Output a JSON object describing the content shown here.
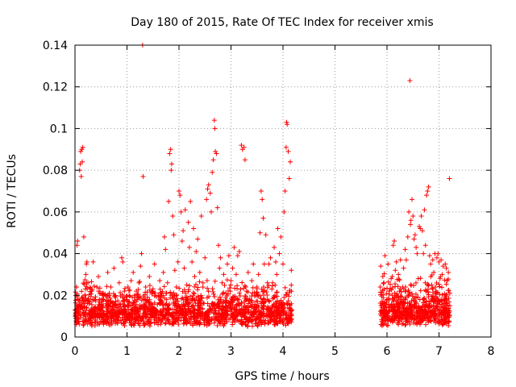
{
  "chart_data": {
    "type": "scatter",
    "title": "Day 180 of 2015, Rate Of TEC Index for receiver xmis",
    "xlabel": "GPS time / hours",
    "ylabel": "ROTI / TECUs",
    "xlim": [
      0,
      8
    ],
    "ylim": [
      0,
      0.14
    ],
    "grid": true,
    "x_ticks": [
      0,
      1,
      2,
      3,
      4,
      5,
      6,
      7,
      8
    ],
    "x_tick_labels": [
      "0",
      "1",
      "2",
      "3",
      "4",
      "5",
      "6",
      "7",
      "8"
    ],
    "y_ticks": [
      0,
      0.02,
      0.04,
      0.06,
      0.08,
      0.1,
      0.12,
      0.14
    ],
    "y_tick_labels": [
      "0",
      "0.02",
      "0.04",
      "0.06",
      "0.08",
      "0.1",
      "0.12",
      "0.14"
    ],
    "marker": "+",
    "marker_color": "#ff0000",
    "series": [
      {
        "name": "ROTI",
        "points": [
          [
            0.0,
            0.013
          ],
          [
            0.02,
            0.009
          ],
          [
            0.03,
            0.024
          ],
          [
            0.04,
            0.044
          ],
          [
            0.05,
            0.046
          ],
          [
            0.06,
            0.018
          ],
          [
            0.07,
            0.011
          ],
          [
            0.08,
            0.015
          ],
          [
            0.09,
            0.08
          ],
          [
            0.1,
            0.083
          ],
          [
            0.11,
            0.089
          ],
          [
            0.12,
            0.077
          ],
          [
            0.13,
            0.09
          ],
          [
            0.14,
            0.084
          ],
          [
            0.15,
            0.091
          ],
          [
            0.16,
            0.012
          ],
          [
            0.17,
            0.048
          ],
          [
            0.18,
            0.016
          ],
          [
            0.19,
            0.02
          ],
          [
            0.2,
            0.023
          ],
          [
            0.21,
            0.03
          ],
          [
            0.22,
            0.035
          ],
          [
            0.23,
            0.036
          ],
          [
            0.25,
            0.026
          ],
          [
            0.27,
            0.016
          ],
          [
            0.3,
            0.008
          ],
          [
            0.32,
            0.022
          ],
          [
            0.35,
            0.036
          ],
          [
            0.38,
            0.018
          ],
          [
            0.4,
            0.01
          ],
          [
            0.42,
            0.024
          ],
          [
            0.45,
            0.029
          ],
          [
            0.48,
            0.015
          ],
          [
            0.5,
            0.011
          ],
          [
            0.52,
            0.021
          ],
          [
            0.55,
            0.018
          ],
          [
            0.58,
            0.008
          ],
          [
            0.6,
            0.014
          ],
          [
            0.63,
            0.031
          ],
          [
            0.66,
            0.02
          ],
          [
            0.69,
            0.024
          ],
          [
            0.72,
            0.01
          ],
          [
            0.75,
            0.033
          ],
          [
            0.78,
            0.019
          ],
          [
            0.82,
            0.015
          ],
          [
            0.85,
            0.026
          ],
          [
            0.88,
            0.008
          ],
          [
            0.9,
            0.038
          ],
          [
            0.92,
            0.036
          ],
          [
            0.95,
            0.022
          ],
          [
            0.98,
            0.012
          ],
          [
            1.0,
            0.018
          ],
          [
            1.02,
            0.024
          ],
          [
            1.05,
            0.011
          ],
          [
            1.08,
            0.027
          ],
          [
            1.1,
            0.015
          ],
          [
            1.12,
            0.031
          ],
          [
            1.15,
            0.019
          ],
          [
            1.18,
            0.022
          ],
          [
            1.2,
            0.013
          ],
          [
            1.23,
            0.026
          ],
          [
            1.26,
            0.034
          ],
          [
            1.28,
            0.04
          ],
          [
            1.3,
            0.14
          ],
          [
            1.31,
            0.077
          ],
          [
            1.33,
            0.018
          ],
          [
            1.36,
            0.024
          ],
          [
            1.4,
            0.011
          ],
          [
            1.43,
            0.029
          ],
          [
            1.46,
            0.016
          ],
          [
            1.5,
            0.022
          ],
          [
            1.53,
            0.035
          ],
          [
            1.56,
            0.013
          ],
          [
            1.6,
            0.02
          ],
          [
            1.63,
            0.027
          ],
          [
            1.66,
            0.017
          ],
          [
            1.7,
            0.031
          ],
          [
            1.72,
            0.048
          ],
          [
            1.74,
            0.042
          ],
          [
            1.76,
            0.021
          ],
          [
            1.78,
            0.026
          ],
          [
            1.8,
            0.065
          ],
          [
            1.82,
            0.088
          ],
          [
            1.84,
            0.09
          ],
          [
            1.85,
            0.08
          ],
          [
            1.86,
            0.083
          ],
          [
            1.88,
            0.058
          ],
          [
            1.9,
            0.049
          ],
          [
            1.92,
            0.032
          ],
          [
            1.95,
            0.024
          ],
          [
            1.98,
            0.036
          ],
          [
            2.0,
            0.07
          ],
          [
            2.02,
            0.068
          ],
          [
            2.04,
            0.06
          ],
          [
            2.06,
            0.046
          ],
          [
            2.08,
            0.051
          ],
          [
            2.1,
            0.033
          ],
          [
            2.12,
            0.061
          ],
          [
            2.15,
            0.025
          ],
          [
            2.18,
            0.055
          ],
          [
            2.2,
            0.043
          ],
          [
            2.22,
            0.065
          ],
          [
            2.25,
            0.036
          ],
          [
            2.28,
            0.052
          ],
          [
            2.3,
            0.029
          ],
          [
            2.33,
            0.041
          ],
          [
            2.36,
            0.047
          ],
          [
            2.4,
            0.031
          ],
          [
            2.43,
            0.058
          ],
          [
            2.46,
            0.024
          ],
          [
            2.5,
            0.038
          ],
          [
            2.53,
            0.066
          ],
          [
            2.55,
            0.071
          ],
          [
            2.57,
            0.073
          ],
          [
            2.6,
            0.069
          ],
          [
            2.62,
            0.06
          ],
          [
            2.64,
            0.079
          ],
          [
            2.66,
            0.085
          ],
          [
            2.68,
            0.104
          ],
          [
            2.69,
            0.1
          ],
          [
            2.7,
            0.089
          ],
          [
            2.72,
            0.088
          ],
          [
            2.74,
            0.062
          ],
          [
            2.76,
            0.044
          ],
          [
            2.78,
            0.033
          ],
          [
            2.8,
            0.038
          ],
          [
            2.83,
            0.026
          ],
          [
            2.86,
            0.03
          ],
          [
            2.9,
            0.021
          ],
          [
            2.93,
            0.035
          ],
          [
            2.96,
            0.039
          ],
          [
            3.0,
            0.027
          ],
          [
            3.03,
            0.033
          ],
          [
            3.06,
            0.043
          ],
          [
            3.1,
            0.03
          ],
          [
            3.13,
            0.039
          ],
          [
            3.16,
            0.041
          ],
          [
            3.2,
            0.092
          ],
          [
            3.22,
            0.09
          ],
          [
            3.25,
            0.091
          ],
          [
            3.27,
            0.085
          ],
          [
            3.3,
            0.022
          ],
          [
            3.33,
            0.031
          ],
          [
            3.36,
            0.018
          ],
          [
            3.4,
            0.027
          ],
          [
            3.43,
            0.035
          ],
          [
            3.46,
            0.014
          ],
          [
            3.5,
            0.024
          ],
          [
            3.53,
            0.03
          ],
          [
            3.56,
            0.05
          ],
          [
            3.58,
            0.07
          ],
          [
            3.6,
            0.066
          ],
          [
            3.62,
            0.057
          ],
          [
            3.64,
            0.035
          ],
          [
            3.67,
            0.049
          ],
          [
            3.7,
            0.026
          ],
          [
            3.73,
            0.035
          ],
          [
            3.76,
            0.038
          ],
          [
            3.8,
            0.026
          ],
          [
            3.83,
            0.043
          ],
          [
            3.86,
            0.036
          ],
          [
            3.88,
            0.03
          ],
          [
            3.9,
            0.052
          ],
          [
            3.93,
            0.04
          ],
          [
            3.96,
            0.048
          ],
          [
            4.0,
            0.035
          ],
          [
            4.02,
            0.06
          ],
          [
            4.04,
            0.07
          ],
          [
            4.06,
            0.091
          ],
          [
            4.07,
            0.103
          ],
          [
            4.08,
            0.102
          ],
          [
            4.1,
            0.089
          ],
          [
            4.12,
            0.076
          ],
          [
            4.14,
            0.084
          ],
          [
            4.16,
            0.032
          ],
          [
            4.17,
            0.013
          ],
          [
            5.87,
            0.024
          ],
          [
            5.88,
            0.034
          ],
          [
            5.9,
            0.015
          ],
          [
            5.92,
            0.029
          ],
          [
            5.94,
            0.026
          ],
          [
            5.96,
            0.039
          ],
          [
            5.98,
            0.01
          ],
          [
            6.0,
            0.018
          ],
          [
            6.02,
            0.035
          ],
          [
            6.04,
            0.022
          ],
          [
            6.06,
            0.014
          ],
          [
            6.08,
            0.028
          ],
          [
            6.1,
            0.02
          ],
          [
            6.12,
            0.044
          ],
          [
            6.14,
            0.046
          ],
          [
            6.16,
            0.032
          ],
          [
            6.18,
            0.036
          ],
          [
            6.2,
            0.016
          ],
          [
            6.22,
            0.03
          ],
          [
            6.24,
            0.022
          ],
          [
            6.26,
            0.037
          ],
          [
            6.28,
            0.012
          ],
          [
            6.3,
            0.024
          ],
          [
            6.32,
            0.033
          ],
          [
            6.35,
            0.042
          ],
          [
            6.37,
            0.037
          ],
          [
            6.4,
            0.048
          ],
          [
            6.42,
            0.06
          ],
          [
            6.44,
            0.123
          ],
          [
            6.45,
            0.054
          ],
          [
            6.46,
            0.056
          ],
          [
            6.48,
            0.066
          ],
          [
            6.5,
            0.058
          ],
          [
            6.52,
            0.047
          ],
          [
            6.54,
            0.049
          ],
          [
            6.56,
            0.043
          ],
          [
            6.58,
            0.04
          ],
          [
            6.6,
            0.028
          ],
          [
            6.62,
            0.053
          ],
          [
            6.64,
            0.052
          ],
          [
            6.66,
            0.058
          ],
          [
            6.68,
            0.051
          ],
          [
            6.7,
            0.04
          ],
          [
            6.72,
            0.061
          ],
          [
            6.74,
            0.044
          ],
          [
            6.76,
            0.068
          ],
          [
            6.78,
            0.07
          ],
          [
            6.8,
            0.072
          ],
          [
            6.82,
            0.039
          ],
          [
            6.84,
            0.035
          ],
          [
            6.86,
            0.025
          ],
          [
            6.88,
            0.037
          ],
          [
            6.9,
            0.031
          ],
          [
            6.92,
            0.04
          ],
          [
            6.94,
            0.022
          ],
          [
            6.96,
            0.038
          ],
          [
            6.98,
            0.04
          ],
          [
            7.0,
            0.036
          ],
          [
            7.02,
            0.028
          ],
          [
            7.04,
            0.037
          ],
          [
            7.06,
            0.03
          ],
          [
            7.08,
            0.034
          ],
          [
            7.1,
            0.018
          ],
          [
            7.12,
            0.035
          ],
          [
            7.14,
            0.033
          ],
          [
            7.16,
            0.027
          ],
          [
            7.18,
            0.031
          ],
          [
            7.2,
            0.076
          ],
          [
            7.21,
            0.015
          ]
        ],
        "dense_band": [
          {
            "x_start": 0.0,
            "x_end": 4.17,
            "y_min": 0.005,
            "y_max": 0.03,
            "count": 1700
          },
          {
            "x_start": 5.87,
            "x_end": 7.21,
            "y_min": 0.005,
            "y_max": 0.033,
            "count": 650
          }
        ]
      }
    ]
  }
}
